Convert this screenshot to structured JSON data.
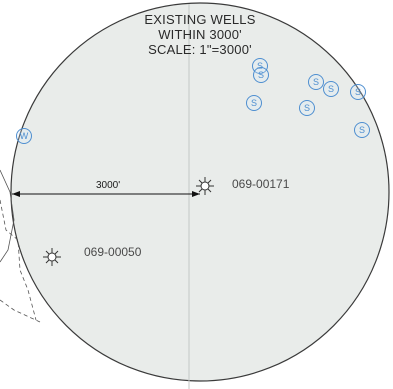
{
  "title": {
    "line1": "EXISTING WELLS",
    "line2": "WITHIN 3000'",
    "line3": "SCALE: 1\"=3000'"
  },
  "radius_label": "3000'",
  "wells": [
    {
      "id": "069-00171",
      "type": "subject-well-icon"
    },
    {
      "id": "069-00050",
      "type": "subject-well-icon"
    }
  ],
  "symbols": [
    {
      "letter": "S"
    },
    {
      "letter": "S"
    },
    {
      "letter": "S"
    },
    {
      "letter": "S"
    },
    {
      "letter": "S"
    },
    {
      "letter": "S"
    },
    {
      "letter": "S"
    },
    {
      "letter": "S"
    },
    {
      "letter": "W"
    }
  ],
  "colors": {
    "circle_fill": "#e9ecea",
    "circle_stroke": "#3a3a3a",
    "symbol_blue": "#4f8fd0",
    "label_gray": "#4a4a4a"
  }
}
